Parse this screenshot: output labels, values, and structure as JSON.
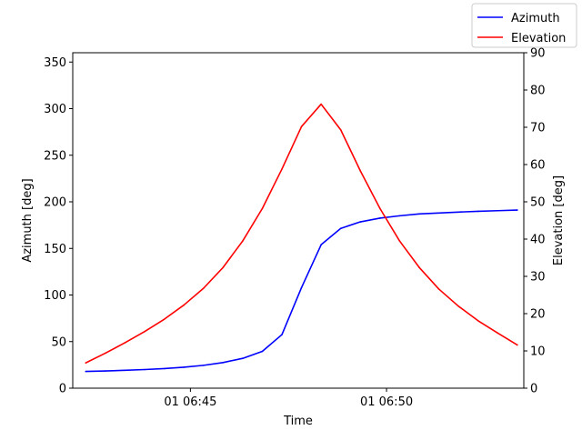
{
  "chart_data": {
    "type": "line",
    "xlabel": "Time",
    "ylabel_left": "Azimuth [deg]",
    "ylabel_right": "Elevation [deg]",
    "x_range": [
      "06:42:00",
      "06:53:30"
    ],
    "x_ticks": [
      {
        "time": "06:45:00",
        "label": "01 06:45"
      },
      {
        "time": "06:50:00",
        "label": "01 06:50"
      }
    ],
    "ylim_left": [
      0,
      360
    ],
    "yticks_left": [
      0,
      50,
      100,
      150,
      200,
      250,
      300,
      350
    ],
    "ylim_right": [
      0,
      90
    ],
    "yticks_right": [
      0,
      10,
      20,
      30,
      40,
      50,
      60,
      70,
      80,
      90
    ],
    "grid": false,
    "legend": {
      "placement": "top-right",
      "entries": [
        "Azimuth",
        "Elevation"
      ]
    },
    "series": [
      {
        "name": "Azimuth",
        "axis": "left",
        "color": "#0000ff",
        "x": [
          "06:42:20",
          "06:42:50",
          "06:43:20",
          "06:43:50",
          "06:44:20",
          "06:44:50",
          "06:45:20",
          "06:45:50",
          "06:46:20",
          "06:46:50",
          "06:47:20",
          "06:47:50",
          "06:48:20",
          "06:48:50",
          "06:49:20",
          "06:49:50",
          "06:50:20",
          "06:50:50",
          "06:51:20",
          "06:51:50",
          "06:52:20",
          "06:52:50",
          "06:53:20"
        ],
        "values": [
          18,
          18.5,
          19.2,
          20,
          21,
          22.5,
          24.5,
          27.5,
          32,
          39.5,
          57.5,
          108,
          154,
          171.5,
          178.5,
          182.5,
          185,
          187,
          188,
          189,
          189.8,
          190.5,
          191.2
        ]
      },
      {
        "name": "Elevation",
        "axis": "right",
        "color": "#ff0000",
        "x": [
          "06:42:20",
          "06:42:50",
          "06:43:20",
          "06:43:50",
          "06:44:20",
          "06:44:50",
          "06:45:20",
          "06:45:50",
          "06:46:20",
          "06:46:50",
          "06:47:20",
          "06:47:50",
          "06:48:20",
          "06:48:50",
          "06:49:20",
          "06:49:50",
          "06:50:20",
          "06:50:50",
          "06:51:20",
          "06:51:50",
          "06:52:20",
          "06:52:50",
          "06:53:20"
        ],
        "values": [
          6.8,
          9.4,
          12.2,
          15.2,
          18.5,
          22.3,
          26.8,
          32.4,
          39.5,
          48.2,
          58.8,
          70.2,
          76.2,
          69.3,
          58.3,
          48.2,
          39.5,
          32.4,
          26.6,
          22.0,
          18.1,
          14.8,
          11.6
        ]
      }
    ]
  }
}
